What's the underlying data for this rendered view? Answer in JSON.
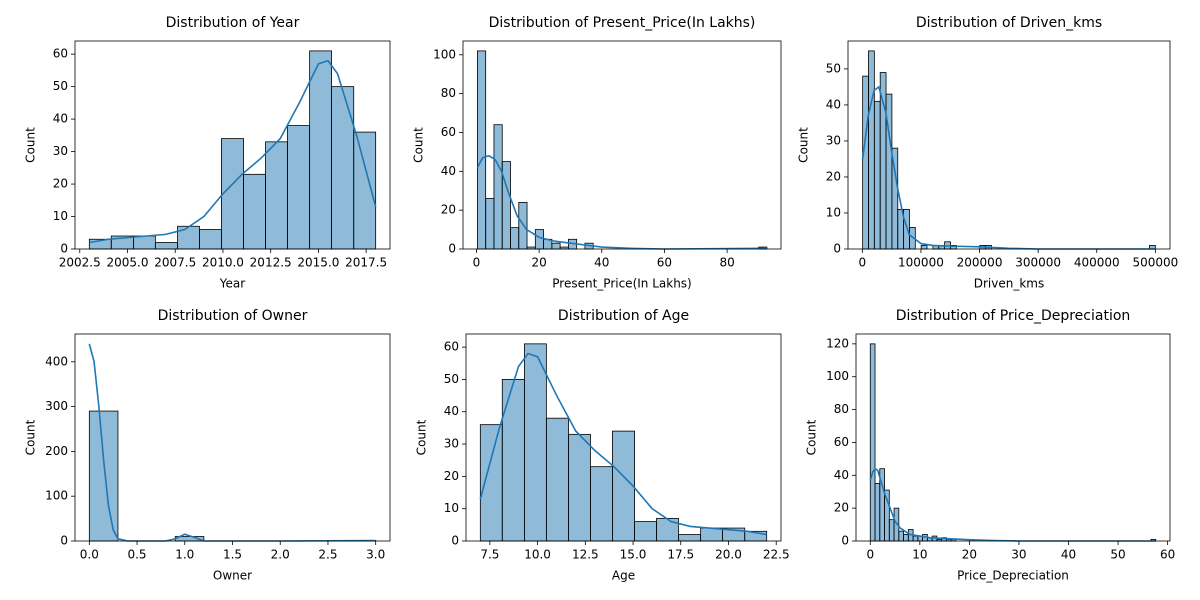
{
  "chart_data": [
    {
      "type": "histogram",
      "title": "Distribution of Year",
      "x_label": "Year",
      "y_label": "Count",
      "color": "#1f77b4",
      "bins": [
        2003,
        2004.15,
        2005.31,
        2006.46,
        2007.62,
        2008.77,
        2009.92,
        2011.08,
        2012.23,
        2013.38,
        2014.54,
        2015.69,
        2016.85,
        2018
      ],
      "values": [
        3,
        4,
        4,
        2,
        7,
        6,
        34,
        23,
        33,
        38,
        61,
        50,
        36
      ],
      "kde": {
        "x": [
          2003,
          2004,
          2005,
          2006,
          2007,
          2008,
          2009,
          2010,
          2011,
          2012,
          2013,
          2014,
          2015,
          2015.5,
          2016,
          2017,
          2018
        ],
        "values": [
          2,
          3,
          3.5,
          4,
          4.5,
          6,
          10,
          17,
          23,
          28,
          34,
          45,
          57,
          58,
          54,
          35,
          13
        ]
      },
      "xlim": [
        2002.25,
        2018.75
      ],
      "ylim": [
        0,
        64.05
      ],
      "xticks": [
        {
          "value": 2002.5,
          "label": "2002.5"
        },
        {
          "value": 2005,
          "label": "2005.0"
        },
        {
          "value": 2007.5,
          "label": "2007.5"
        },
        {
          "value": 2010,
          "label": "2010.0"
        },
        {
          "value": 2012.5,
          "label": "2012.5"
        },
        {
          "value": 2015,
          "label": "2015.0"
        },
        {
          "value": 2017.5,
          "label": "2017.5"
        }
      ],
      "yticks": [
        0,
        10,
        20,
        30,
        40,
        50,
        60
      ]
    },
    {
      "type": "histogram",
      "title": "Distribution of Present_Price(In Lakhs)",
      "x_label": "Present_Price(In Lakhs)",
      "y_label": "Count",
      "color": "#1f77b4",
      "bins": [
        0.3,
        2.94,
        5.58,
        8.22,
        10.86,
        13.5,
        16.14,
        18.78,
        21.42,
        24.06,
        26.7,
        29.34,
        31.98,
        34.62,
        37.26,
        39.9,
        42.54,
        45.18,
        47.82,
        50.46,
        53.1,
        55.74,
        58.38,
        61.02,
        63.66,
        66.3,
        68.94,
        71.58,
        74.22,
        76.86,
        79.5,
        82.14,
        84.78,
        87.42,
        90.06,
        92.7
      ],
      "values": [
        102,
        26,
        64,
        45,
        11,
        24,
        1,
        10,
        5,
        3,
        1,
        5,
        0,
        3,
        0,
        0,
        0,
        0,
        0,
        0,
        0,
        0,
        0,
        0,
        0,
        0,
        0,
        0,
        0,
        0,
        0,
        0,
        0,
        0,
        1
      ],
      "kde": {
        "x": [
          0.3,
          2,
          4,
          6,
          8,
          10,
          13,
          16,
          20,
          25,
          30,
          35,
          40,
          50,
          60,
          92.7
        ],
        "values": [
          42,
          47,
          48,
          46,
          40,
          30,
          17,
          10,
          6,
          4,
          3,
          2,
          1,
          0.3,
          0,
          0.4
        ]
      },
      "xlim": [
        -4.3,
        97.2
      ],
      "ylim": [
        0,
        107.1
      ],
      "xticks": [
        0,
        20,
        40,
        60,
        80
      ],
      "yticks": [
        0,
        20,
        40,
        60,
        80,
        100
      ]
    },
    {
      "type": "histogram",
      "title": "Distribution of Driven_kms",
      "x_label": "Driven_kms",
      "y_label": "Count",
      "color": "#1f77b4",
      "bins": [
        500,
        10490,
        20480,
        30470,
        40460,
        50450,
        60440,
        70430,
        80420,
        90410,
        100400,
        110390,
        120380,
        130370,
        140360,
        150350,
        160340,
        170330,
        180320,
        190310,
        200300,
        210290,
        220280,
        230270,
        240260,
        250250,
        260240,
        270230,
        280220,
        290210,
        300200,
        310190,
        320180,
        330170,
        340160,
        350150,
        360140,
        370130,
        380120,
        390110,
        400100,
        410090,
        420080,
        430070,
        440060,
        450050,
        460040,
        470030,
        480020,
        490010,
        500000
      ],
      "values": [
        48,
        55,
        41,
        49,
        43,
        28,
        11,
        11,
        6,
        0,
        1,
        0,
        1,
        1,
        2,
        1,
        0,
        0,
        0,
        0,
        1,
        1,
        0,
        0,
        0,
        0,
        0,
        0,
        0,
        0,
        0,
        0,
        0,
        0,
        0,
        0,
        0,
        0,
        0,
        0,
        0,
        0,
        0,
        0,
        0,
        0,
        0,
        0,
        0,
        1
      ],
      "kde": {
        "x": [
          500,
          10000,
          20000,
          28000,
          40000,
          50000,
          60000,
          70000,
          80000,
          100000,
          120000,
          150000,
          200000,
          250000,
          300000,
          500000
        ],
        "values": [
          25,
          37,
          44,
          45,
          38,
          27,
          17,
          9,
          4,
          1.5,
          1,
          0.8,
          0.6,
          0.2,
          0,
          0
        ]
      },
      "xlim": [
        -24475,
        524975
      ],
      "ylim": [
        0,
        57.75
      ],
      "xticks": [
        0,
        100000,
        200000,
        300000,
        400000,
        500000
      ],
      "yticks": [
        0,
        10,
        20,
        30,
        40,
        50
      ]
    },
    {
      "type": "histogram",
      "title": "Distribution of Owner",
      "x_label": "Owner",
      "y_label": "Count",
      "color": "#1f77b4",
      "bins": [
        0,
        0.3,
        0.6,
        0.9,
        1.2,
        1.5,
        1.8,
        2.1,
        2.4,
        2.7,
        3
      ],
      "values": [
        290,
        0,
        0,
        10,
        0,
        0,
        0,
        0,
        0,
        1
      ],
      "kde": {
        "x": [
          0,
          0.05,
          0.1,
          0.15,
          0.2,
          0.25,
          0.3,
          0.4,
          0.8,
          0.9,
          1,
          1.1,
          1.2,
          2,
          3
        ],
        "values": [
          440,
          400,
          300,
          180,
          80,
          25,
          5,
          0,
          0,
          5,
          15,
          8,
          0,
          0,
          1
        ]
      },
      "xlim": [
        -0.15,
        3.15
      ],
      "ylim": [
        0,
        462
      ],
      "xticks": [
        {
          "value": 0,
          "label": "0.0"
        },
        {
          "value": 0.5,
          "label": "0.5"
        },
        {
          "value": 1,
          "label": "1.0"
        },
        {
          "value": 1.5,
          "label": "1.5"
        },
        {
          "value": 2,
          "label": "2.0"
        },
        {
          "value": 2.5,
          "label": "2.5"
        },
        {
          "value": 3,
          "label": "3.0"
        }
      ],
      "yticks": [
        0,
        100,
        200,
        300,
        400
      ]
    },
    {
      "type": "histogram",
      "title": "Distribution of Age",
      "x_label": "Age",
      "y_label": "Count",
      "color": "#1f77b4",
      "bins": [
        7,
        8.15,
        9.31,
        10.46,
        11.62,
        12.77,
        13.92,
        15.08,
        16.23,
        17.38,
        18.54,
        19.69,
        20.85,
        22
      ],
      "values": [
        36,
        50,
        61,
        38,
        33,
        23,
        34,
        6,
        7,
        2,
        4,
        4,
        3
      ],
      "kde": {
        "x": [
          7,
          8,
          9,
          9.5,
          10,
          11,
          12,
          13,
          14,
          15,
          16,
          17,
          18,
          19,
          20,
          21,
          22
        ],
        "values": [
          13,
          35,
          54,
          58,
          57,
          45,
          34,
          28,
          23,
          17,
          10,
          6,
          4.5,
          4,
          3.5,
          3,
          2
        ]
      },
      "xlim": [
        6.25,
        22.75
      ],
      "ylim": [
        0,
        64.05
      ],
      "xticks": [
        7.5,
        {
          "value": 10,
          "label": "10.0"
        },
        12.5,
        {
          "value": 15,
          "label": "15.0"
        },
        17.5,
        {
          "value": 20,
          "label": "20.0"
        },
        22.5
      ],
      "yticks": [
        0,
        10,
        20,
        30,
        40,
        50,
        60
      ]
    },
    {
      "type": "histogram",
      "title": "Distribution of Price_Depreciation",
      "x_label": "Price_Depreciation",
      "y_label": "Count",
      "color": "#1f77b4",
      "bins": [
        0,
        0.96,
        1.92,
        2.88,
        3.84,
        4.8,
        5.76,
        6.72,
        7.68,
        8.64,
        9.6,
        10.56,
        11.52,
        12.48,
        13.44,
        14.4,
        15.36,
        16.32,
        17.28,
        18.24,
        19.2,
        20.16,
        21.12,
        22.08,
        23.04,
        24,
        24.96,
        25.92,
        26.88,
        27.84,
        28.8,
        29.76,
        30.72,
        31.68,
        32.64,
        33.6,
        34.56,
        35.52,
        36.48,
        37.44,
        38.4,
        39.36,
        40.32,
        41.28,
        42.24,
        43.2,
        44.16,
        45.12,
        46.08,
        47.04,
        48,
        48.96,
        49.92,
        50.88,
        51.84,
        52.8,
        53.76,
        54.72,
        55.68,
        56.64,
        57.6
      ],
      "values": [
        120,
        35,
        44,
        31,
        13,
        20,
        6,
        4,
        7,
        3,
        3,
        4,
        2,
        3,
        1,
        2,
        1,
        1,
        0,
        0,
        0,
        0,
        0,
        0,
        0,
        0,
        0,
        0,
        0,
        0,
        0,
        0,
        0,
        0,
        0,
        0,
        0,
        0,
        0,
        0,
        0,
        0,
        0,
        0,
        0,
        0,
        0,
        0,
        0,
        0,
        0,
        0,
        0,
        0,
        0,
        0,
        0,
        0,
        0,
        1
      ],
      "kde": {
        "x": [
          0,
          0.5,
          1,
          1.5,
          2,
          3,
          4,
          5,
          6,
          8,
          10,
          12,
          15,
          20,
          25,
          30,
          57.6
        ],
        "values": [
          37,
          42,
          44,
          43,
          38,
          28,
          20,
          12,
          8,
          4,
          3,
          2,
          1.5,
          0.8,
          0.3,
          0,
          0
        ]
      },
      "xlim": [
        -2.88,
        60.48
      ],
      "ylim": [
        0,
        126
      ],
      "xticks": [
        0,
        10,
        20,
        30,
        40,
        50,
        60
      ],
      "yticks": [
        0,
        20,
        40,
        60,
        80,
        100,
        120
      ]
    }
  ]
}
